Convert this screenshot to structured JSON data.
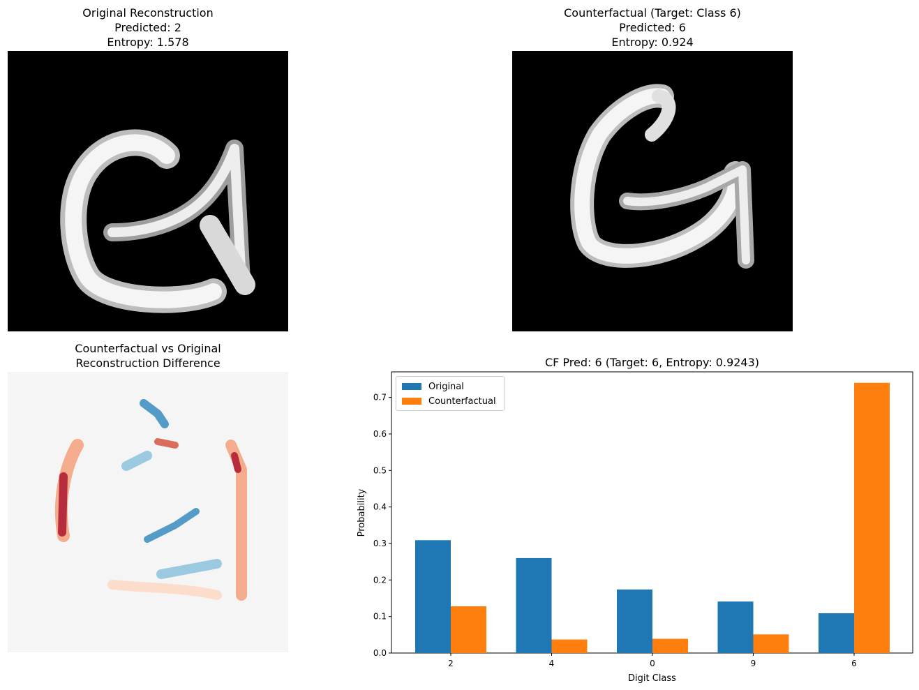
{
  "panels": {
    "original": {
      "title_lines": [
        "Original Reconstruction",
        "Predicted: 2",
        "Entropy: 1.578"
      ]
    },
    "counterfactual": {
      "title_lines": [
        "Counterfactual (Target: Class 6)",
        "Predicted: 6",
        "Entropy: 0.924"
      ]
    },
    "difference": {
      "title_lines": [
        "Counterfactual vs Original",
        "Reconstruction Difference"
      ]
    }
  },
  "chart_data": {
    "type": "bar",
    "title": "CF Pred: 6 (Target: 6, Entropy: 0.9243)",
    "xlabel": "Digit Class",
    "ylabel": "Probability",
    "categories": [
      "2",
      "4",
      "0",
      "9",
      "6"
    ],
    "series": [
      {
        "name": "Original",
        "color": "#1f77b4",
        "values": [
          0.309,
          0.26,
          0.174,
          0.141,
          0.109
        ]
      },
      {
        "name": "Counterfactual",
        "color": "#ff7f0e",
        "values": [
          0.128,
          0.037,
          0.039,
          0.051,
          0.74
        ]
      }
    ],
    "ylim": [
      0,
      0.77
    ],
    "yticks": [
      "0.0",
      "0.1",
      "0.2",
      "0.3",
      "0.4",
      "0.5",
      "0.6",
      "0.7"
    ],
    "legend_position": "top-left",
    "grid": false
  }
}
